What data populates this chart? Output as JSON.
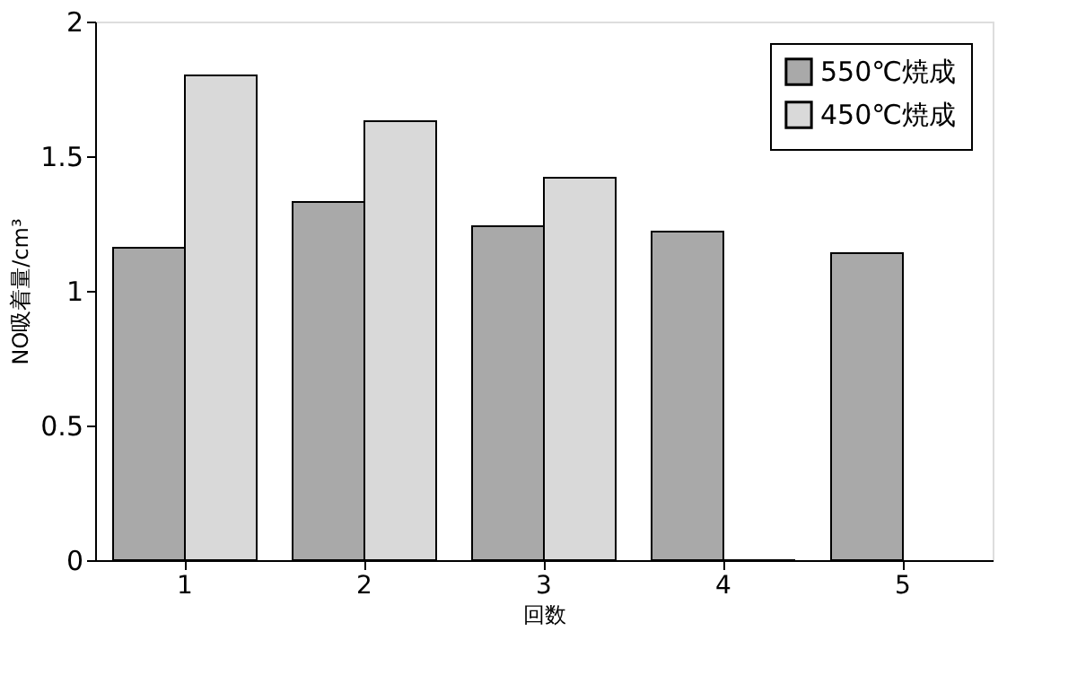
{
  "chart_data": {
    "type": "bar",
    "xlabel": "回数",
    "ylabel": "NO吸着量/cm³",
    "categories": [
      "1",
      "2",
      "3",
      "4",
      "5"
    ],
    "series": [
      {
        "name": "550℃焼成",
        "color": "#a9a9a9",
        "values": [
          1.16,
          1.33,
          1.24,
          1.22,
          1.14
        ]
      },
      {
        "name": "450℃焼成",
        "color": "#d9d9d9",
        "values": [
          1.8,
          1.63,
          1.42,
          0,
          null
        ]
      }
    ],
    "ylim": [
      0,
      2
    ],
    "yticks": [
      0,
      0.5,
      1,
      1.5,
      2
    ],
    "grid": false,
    "legend": "top right"
  }
}
